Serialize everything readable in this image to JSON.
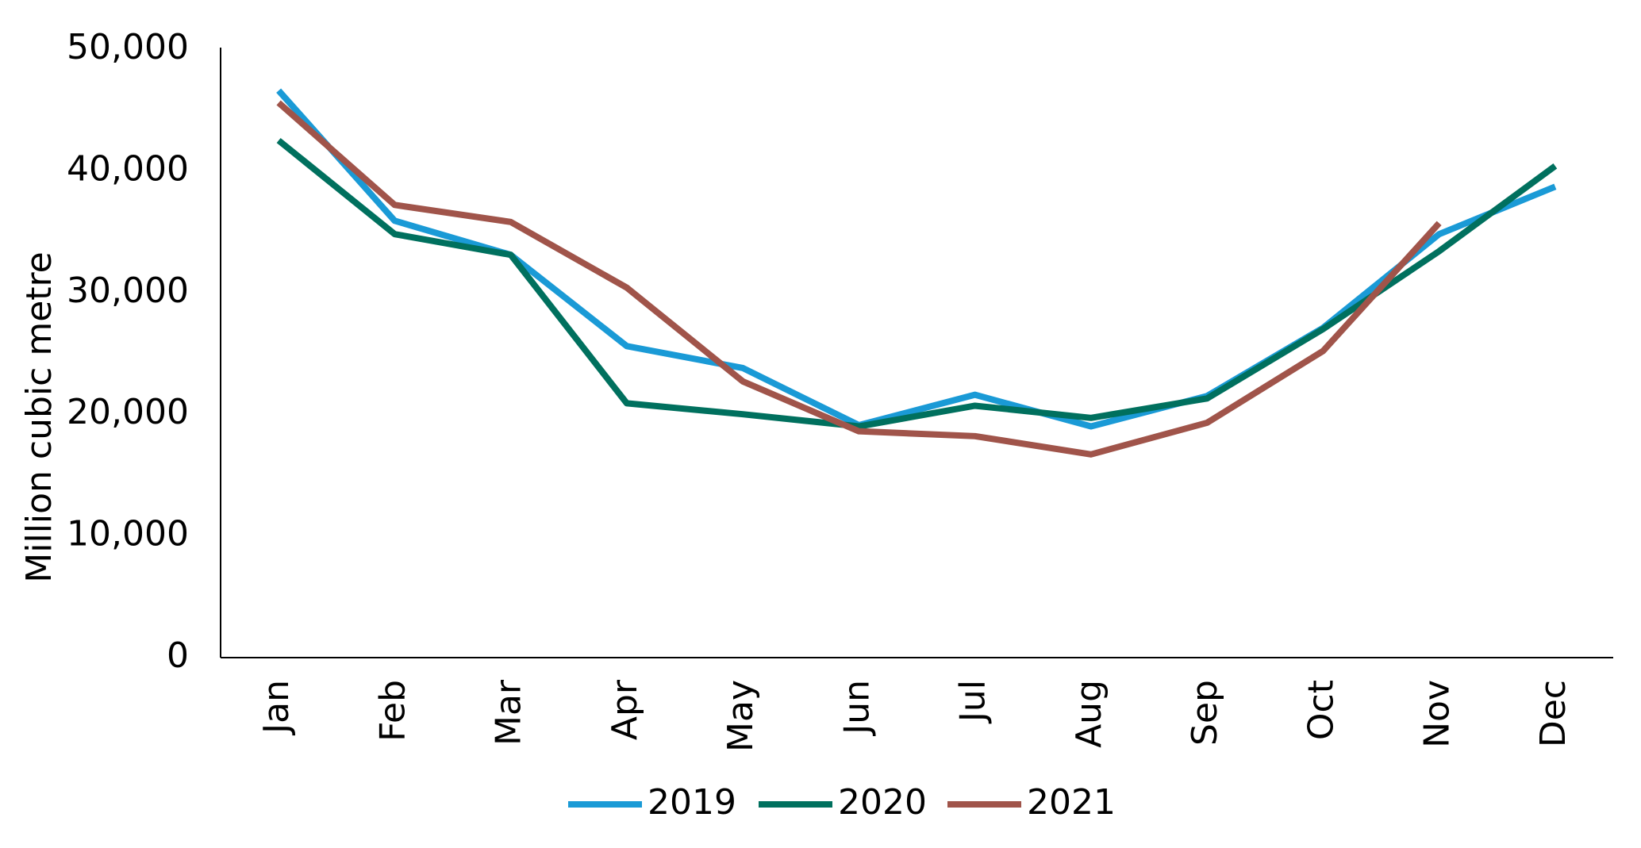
{
  "chart_data": {
    "type": "line",
    "y_label": "Million cubic metre",
    "categories": [
      "Jan",
      "Feb",
      "Mar",
      "Apr",
      "May",
      "Jun",
      "Jul",
      "Aug",
      "Sep",
      "Oct",
      "Nov",
      "Dec"
    ],
    "series": [
      {
        "name": "2019",
        "color": "#1a9ad6",
        "values": [
          46600,
          35900,
          33100,
          25600,
          23800,
          19100,
          21600,
          19000,
          21500,
          27100,
          34800,
          38700
        ]
      },
      {
        "name": "2020",
        "color": "#00705e",
        "values": [
          42500,
          34800,
          33100,
          20900,
          20000,
          19000,
          20700,
          19700,
          21300,
          27000,
          33400,
          40400
        ]
      },
      {
        "name": "2021",
        "color": "#a0544a",
        "values": [
          45600,
          37200,
          35800,
          30400,
          22700,
          18600,
          18200,
          16700,
          19300,
          25200,
          35700,
          null
        ]
      }
    ],
    "ylim": [
      0,
      50000
    ],
    "yticks": [
      0,
      {
        "value": 10000,
        "label": "10,000"
      },
      {
        "value": 20000,
        "label": "20,000"
      },
      {
        "value": 30000,
        "label": "30,000"
      },
      {
        "value": 40000,
        "label": "40,000"
      },
      {
        "value": 50000,
        "label": "50,000"
      }
    ],
    "grid": false,
    "legend": "bottom"
  }
}
